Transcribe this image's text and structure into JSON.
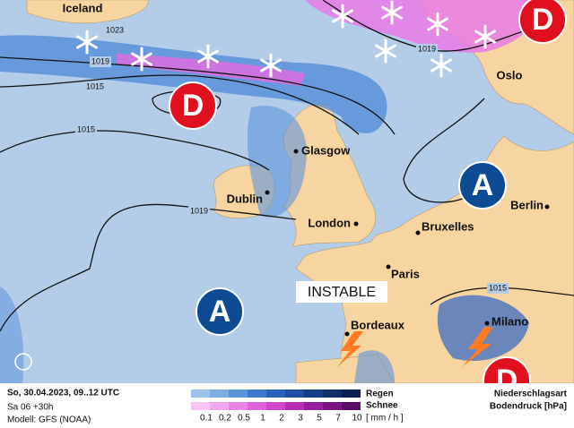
{
  "map": {
    "cities": [
      "Iceland",
      "Oslo",
      "Glasgow",
      "Dublin",
      "London",
      "Berlin",
      "Bruxelles",
      "Paris",
      "Bordeaux",
      "Milano"
    ],
    "isobar_labels": [
      1023,
      1019,
      1015,
      1015,
      1019,
      1019,
      1015
    ],
    "pressure_centers": [
      "D",
      "D",
      "D",
      "A",
      "A"
    ],
    "annotation": "INSTABLE"
  },
  "footer": {
    "date": "So, 30.04.2023, 09..12 UTC",
    "run": "Sa 06 +30h",
    "model": "Modell: GFS (NOAA)"
  },
  "legend": {
    "rain": "Regen",
    "snow": "Schnee",
    "scale": [
      0.1,
      0.2,
      0.5,
      1,
      2,
      3,
      5,
      7,
      10
    ],
    "unit": "[ mm / h ]",
    "type_label": "Niederschlagsart",
    "pressure_label": "Bodendruck [hPa]"
  }
}
